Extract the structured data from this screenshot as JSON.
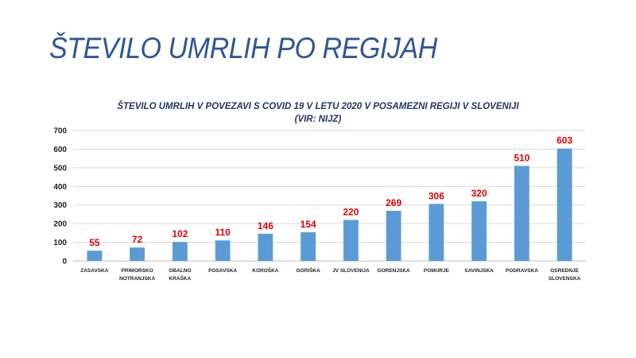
{
  "slide": {
    "title": "ŠTEVILO UMRLIH PO REGIJAH"
  },
  "chart_data": {
    "type": "bar",
    "title": "ŠTEVILO UMRLIH V POVEZAVI S COVID 19  V LETU 2020  V POSAMEZNI REGIJI V SLOVENIJI",
    "subtitle": "(VIR: NIJZ)",
    "categories": [
      [
        "ZASAVSKA"
      ],
      [
        "PRIMORSKO",
        "NOTRANJSKA"
      ],
      [
        "OBALNO",
        "KRAŠKA"
      ],
      [
        "POSAVSKA"
      ],
      [
        "KOROŠKA"
      ],
      [
        "GORIŠKA"
      ],
      [
        "JV SLOVENIJA"
      ],
      [
        "GORENJSKA"
      ],
      [
        "POMURJE"
      ],
      [
        "SAVINJSKA"
      ],
      [
        "PODRAVSKA"
      ],
      [
        "OSREDNJE",
        "SLOVENSKA"
      ]
    ],
    "values": [
      55,
      72,
      102,
      110,
      146,
      154,
      220,
      269,
      306,
      320,
      510,
      603
    ],
    "ylim": [
      0,
      700
    ],
    "yticks": [
      0,
      100,
      200,
      300,
      400,
      500,
      600,
      700
    ],
    "grid": true,
    "bar_color": "#5b9bd5",
    "label_color": "#e00000"
  }
}
